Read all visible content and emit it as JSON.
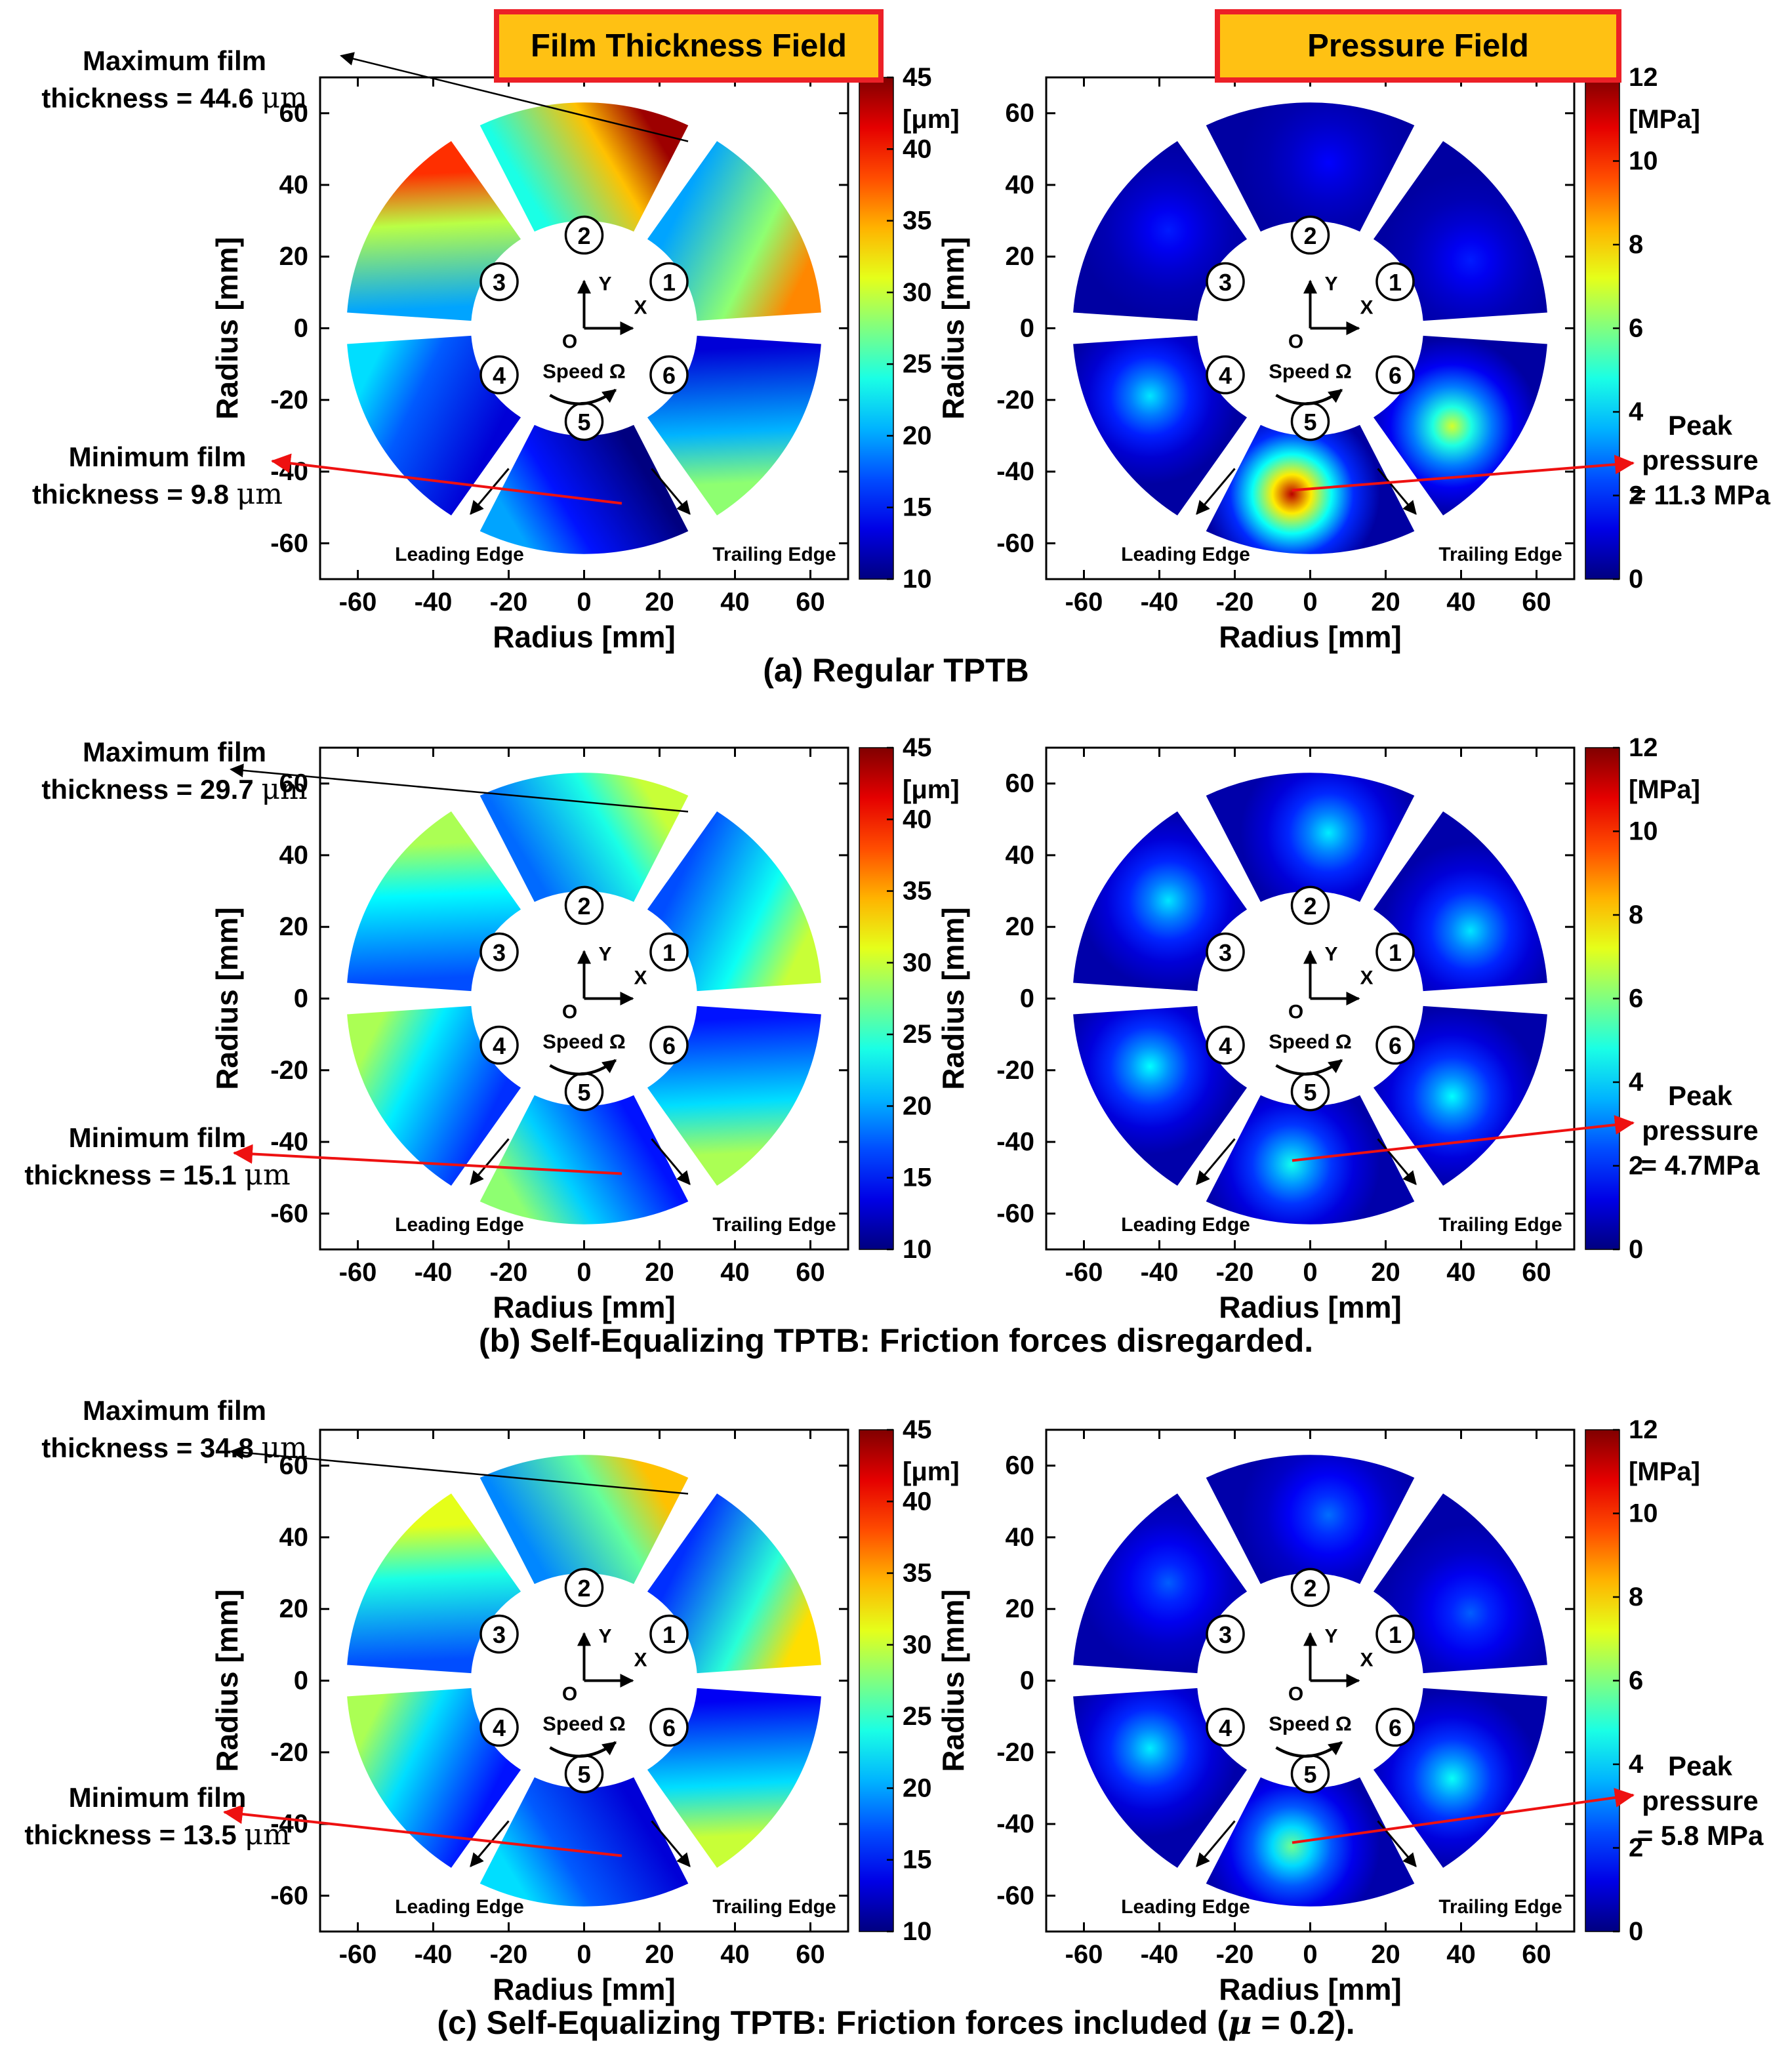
{
  "headers": {
    "film": "Film Thickness Field",
    "pressure": "Pressure Field"
  },
  "colors": {
    "header_bg": "#FFC113",
    "header_border": "#EC2027",
    "annotation_red": "#EE1111",
    "annotation_black": "#000000",
    "plot_border": "#000000",
    "background": "#FFFFFF"
  },
  "axes": {
    "x_label": "Radius [mm]",
    "y_label": "Radius [mm]",
    "x_ticks": [
      -60,
      -40,
      -20,
      0,
      20,
      40,
      60
    ],
    "y_ticks": [
      60,
      40,
      20,
      0,
      -20,
      -40,
      -60
    ],
    "xlim": [
      -70,
      70
    ],
    "ylim": [
      -70,
      70
    ]
  },
  "center_decoration": {
    "pad_numbers": [
      "1",
      "2",
      "3",
      "4",
      "5",
      "6"
    ],
    "speed_label": "Speed Ω",
    "origin_label": "O",
    "x_axis_label": "X",
    "y_axis_label": "Y"
  },
  "edge_labels": {
    "leading": "Leading Edge",
    "trailing": "Trailing Edge"
  },
  "colorbars": {
    "film": {
      "unit": "[μm]",
      "ticks": [
        45,
        40,
        35,
        30,
        25,
        20,
        15,
        10
      ],
      "min": 10,
      "max": 45
    },
    "pressure": {
      "unit": "[MPa]",
      "ticks": [
        12,
        10,
        8,
        6,
        4,
        2,
        0
      ],
      "min": 0,
      "max": 12
    }
  },
  "rows": [
    {
      "id": "a",
      "caption_pre": "(a) Regular TPTB",
      "caption_mu": "",
      "caption_post": "",
      "max_film_line1": "Maximum film",
      "max_film_line2": "thickness = 44.6",
      "min_film_line1": "Minimum film",
      "min_film_line2": "thickness = 9.8",
      "film_unit": "μm",
      "peak_line1": "Peak",
      "peak_line2": "pressure",
      "peak_line3": "= 11.3 MPa"
    },
    {
      "id": "b",
      "caption_pre": "(b) Self-Equalizing TPTB: Friction forces disregarded.",
      "caption_mu": "",
      "caption_post": "",
      "max_film_line1": "Maximum film",
      "max_film_line2": "thickness = 29.7",
      "min_film_line1": "Minimum film",
      "min_film_line2": "thickness = 15.1",
      "film_unit": "μm",
      "peak_line1": "Peak",
      "peak_line2": "pressure",
      "peak_line3": "= 4.7MPa"
    },
    {
      "id": "c",
      "caption_pre": "(c) Self-Equalizing TPTB: Friction forces included (",
      "caption_mu": "μ",
      "caption_post": " = 0.2).",
      "max_film_line1": "Maximum film",
      "max_film_line2": "thickness = 34.8",
      "min_film_line1": "Minimum film",
      "min_film_line2": "thickness = 13.5",
      "film_unit": "μm",
      "peak_line1": "Peak",
      "peak_line2": "pressure",
      "peak_line3": "= 5.8 MPa"
    }
  ],
  "chart_data": [
    {
      "id": "film-a",
      "row": "a",
      "type": "heatmap",
      "field": "film_thickness",
      "units": "μm",
      "colormap": "jet",
      "clim": [
        10,
        45
      ],
      "geometry": {
        "inner_radius_mm": 30,
        "outer_radius_mm": 63,
        "pad_span_deg": 52,
        "pad_centers_deg": [
          30,
          90,
          150,
          210,
          270,
          330
        ],
        "rotation": "counterclockwise"
      },
      "max_film_um": 44.6,
      "min_film_um": 9.8,
      "pads": [
        {
          "pad": 1,
          "lead_outer": 36,
          "trail_inner": 20
        },
        {
          "pad": 2,
          "lead_outer": 44,
          "trail_inner": 24
        },
        {
          "pad": 3,
          "lead_outer": 39,
          "trail_inner": 20
        },
        {
          "pad": 4,
          "lead_outer": 22,
          "trail_inner": 13
        },
        {
          "pad": 5,
          "lead_outer": 20,
          "trail_inner": 10
        },
        {
          "pad": 6,
          "lead_outer": 28,
          "trail_inner": 13
        }
      ]
    },
    {
      "id": "pressure-a",
      "row": "a",
      "type": "heatmap",
      "field": "pressure",
      "units": "MPa",
      "colormap": "jet",
      "clim": [
        0,
        12
      ],
      "peak_pressure_mpa": 11.3,
      "pads": [
        {
          "pad": 1,
          "peak": 1.8,
          "edge": 0.4
        },
        {
          "pad": 2,
          "peak": 1.5,
          "edge": 0.4
        },
        {
          "pad": 3,
          "peak": 1.8,
          "edge": 0.4
        },
        {
          "pad": 4,
          "peak": 4.2,
          "edge": 0.4
        },
        {
          "pad": 5,
          "peak": 11.3,
          "edge": 0.4
        },
        {
          "pad": 6,
          "peak": 7.0,
          "edge": 0.4
        }
      ]
    },
    {
      "id": "film-b",
      "row": "b",
      "type": "heatmap",
      "field": "film_thickness",
      "units": "μm",
      "colormap": "jet",
      "clim": [
        10,
        45
      ],
      "max_film_um": 29.7,
      "min_film_um": 15.1,
      "pads": [
        {
          "pad": 1,
          "lead_outer": 30,
          "trail_inner": 17
        },
        {
          "pad": 2,
          "lead_outer": 30,
          "trail_inner": 18
        },
        {
          "pad": 3,
          "lead_outer": 29,
          "trail_inner": 17
        },
        {
          "pad": 4,
          "lead_outer": 29,
          "trail_inner": 16
        },
        {
          "pad": 5,
          "lead_outer": 28,
          "trail_inner": 15
        },
        {
          "pad": 6,
          "lead_outer": 29,
          "trail_inner": 15
        }
      ]
    },
    {
      "id": "pressure-b",
      "row": "b",
      "type": "heatmap",
      "field": "pressure",
      "units": "MPa",
      "colormap": "jet",
      "clim": [
        0,
        12
      ],
      "peak_pressure_mpa": 4.7,
      "pads": [
        {
          "pad": 1,
          "peak": 4.2,
          "edge": 0.5
        },
        {
          "pad": 2,
          "peak": 4.3,
          "edge": 0.5
        },
        {
          "pad": 3,
          "peak": 4.2,
          "edge": 0.5
        },
        {
          "pad": 4,
          "peak": 4.5,
          "edge": 0.5
        },
        {
          "pad": 5,
          "peak": 4.7,
          "edge": 0.5
        },
        {
          "pad": 6,
          "peak": 4.5,
          "edge": 0.5
        }
      ]
    },
    {
      "id": "film-c",
      "row": "c",
      "type": "heatmap",
      "field": "film_thickness",
      "units": "μm",
      "colormap": "jet",
      "clim": [
        10,
        45
      ],
      "max_film_um": 34.8,
      "min_film_um": 13.5,
      "pads": [
        {
          "pad": 1,
          "lead_outer": 33,
          "trail_inner": 16
        },
        {
          "pad": 2,
          "lead_outer": 34,
          "trail_inner": 19
        },
        {
          "pad": 3,
          "lead_outer": 31,
          "trail_inner": 17
        },
        {
          "pad": 4,
          "lead_outer": 29,
          "trail_inner": 15
        },
        {
          "pad": 5,
          "lead_outer": 22,
          "trail_inner": 13
        },
        {
          "pad": 6,
          "lead_outer": 30,
          "trail_inner": 14
        }
      ]
    },
    {
      "id": "pressure-c",
      "row": "c",
      "type": "heatmap",
      "field": "pressure",
      "units": "MPa",
      "colormap": "jet",
      "clim": [
        0,
        12
      ],
      "peak_pressure_mpa": 5.8,
      "pads": [
        {
          "pad": 1,
          "peak": 2.6,
          "edge": 0.5
        },
        {
          "pad": 2,
          "peak": 2.8,
          "edge": 0.5
        },
        {
          "pad": 3,
          "peak": 2.6,
          "edge": 0.5
        },
        {
          "pad": 4,
          "peak": 4.3,
          "edge": 0.5
        },
        {
          "pad": 5,
          "peak": 5.8,
          "edge": 0.5
        },
        {
          "pad": 6,
          "peak": 4.6,
          "edge": 0.5
        }
      ]
    }
  ]
}
